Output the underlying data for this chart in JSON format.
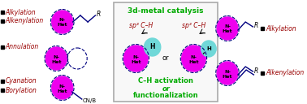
{
  "bg_color": "#ffffff",
  "magenta": "#EE00EE",
  "cyan_ball": "#70D8D8",
  "green_text": "#00AA00",
  "dark_red": "#990000",
  "navy": "#000080",
  "black": "#000000",
  "center_title": "3d-metal catalysis",
  "center_sub1": "C–H activation",
  "center_sub2": "or",
  "center_sub3": "functionalization",
  "sp3_left": "sp³ C–H",
  "sp3_right": "sp³ C–H"
}
